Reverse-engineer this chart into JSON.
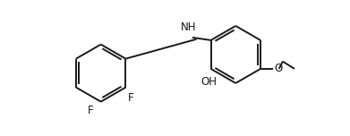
{
  "bg_color": "#ffffff",
  "line_color": "#1a1a1a",
  "line_width": 1.4,
  "font_size": 8.5,
  "fig_width": 3.91,
  "fig_height": 1.52,
  "dpi": 100,
  "xlim": [
    0.0,
    10.0
  ],
  "ylim": [
    0.0,
    4.0
  ]
}
